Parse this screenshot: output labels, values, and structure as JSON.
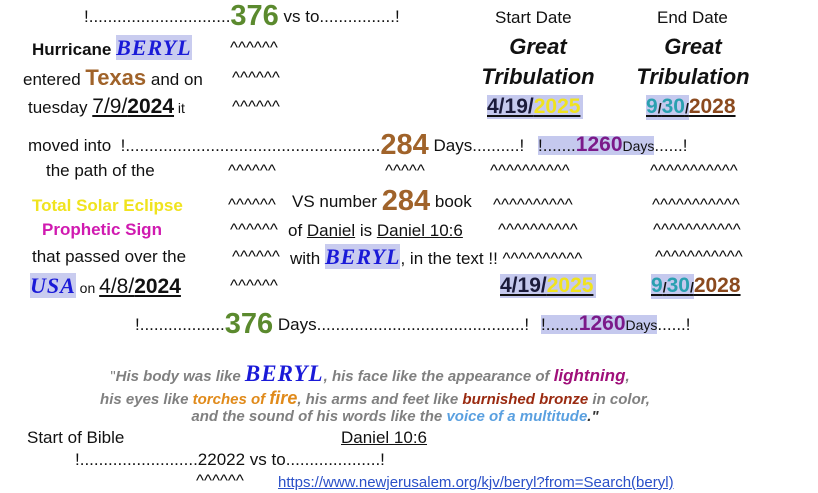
{
  "rows": [
    [
      "!..............................",
      "376",
      " vs to................!"
    ],
    [
      "Start Date"
    ],
    [
      "End Date"
    ],
    [
      "Hurricane ",
      "BERYL"
    ],
    [
      "^^^^^^"
    ],
    [
      "Great",
      "Tribulation"
    ],
    [
      "Great",
      "Tribulation"
    ],
    [
      "entered ",
      "Texas",
      " and on"
    ],
    [
      "^^^^^^"
    ],
    [
      "tuesday ",
      "7/9/",
      "2024",
      " it"
    ],
    [
      "^^^^^^"
    ],
    [
      "4/19/",
      "2025"
    ],
    [
      "9",
      "/",
      "30",
      "/",
      "2028"
    ],
    [
      "moved into  !......................................................",
      "284",
      " Days..........!"
    ],
    [
      "!.......",
      "1260",
      "Days",
      "......!"
    ],
    [
      "the path of the"
    ],
    [
      "^^^^^^",
      "^^^^^",
      "^^^^^^^^^^",
      "^^^^^^^^^^^"
    ],
    [
      "Total Solar Eclipse"
    ],
    [
      "^^^^^^"
    ],
    [
      "VS number ",
      "284",
      " book"
    ],
    [
      "^^^^^^^^^^",
      "^^^^^^^^^^^"
    ],
    [
      "Prophetic Sign"
    ],
    [
      "^^^^^^"
    ],
    [
      "of ",
      "Daniel",
      " is ",
      "Daniel 10:6"
    ],
    [
      "^^^^^^^^^^",
      "^^^^^^^^^^^"
    ],
    [
      "that passed over the"
    ],
    [
      "^^^^^^"
    ],
    [
      "with ",
      "BERYL",
      ", in the text !! ",
      "^^^^^^^^^^"
    ],
    [
      "^^^^^^^^^^^"
    ],
    [
      "USA",
      " on ",
      "4/8/",
      "2024"
    ],
    [
      "^^^^^^"
    ],
    [
      "4/19/",
      "2025"
    ],
    [
      "9",
      "/",
      "30",
      "/",
      "2028"
    ],
    [
      "!..................",
      "376",
      " Days............................................!"
    ],
    [
      "!.......",
      "1260",
      "Days",
      "......!"
    ],
    [
      "\"",
      "His body was like ",
      "BERYL",
      ", his face like the appearance of ",
      "lightning",
      ","
    ],
    [
      "his eyes like ",
      "torches of ",
      "fire",
      ", his arms and feet like ",
      "burnished bronze",
      " in color,"
    ],
    [
      "and the sound of his words like the ",
      "voice of a multitude",
      ".\""
    ],
    [
      "Start of Bible"
    ],
    [
      "Daniel 10:6"
    ],
    [
      "!.........................22022 vs to....................!"
    ],
    [
      "^^^^^^"
    ],
    [
      "https://www.newjerusalem.org/kjv/beryl?from=Search(beryl)"
    ]
  ]
}
